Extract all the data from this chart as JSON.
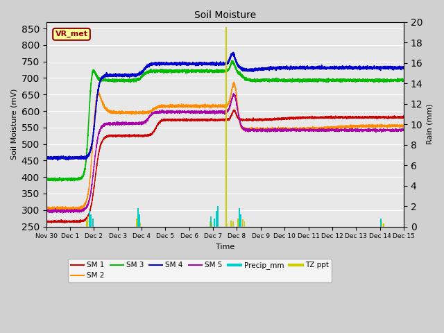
{
  "title": "Soil Moisture",
  "xlabel": "Time",
  "ylabel_left": "Soil Moisture (mV)",
  "ylabel_right": "Rain (mm)",
  "ylim_left": [
    250,
    870
  ],
  "ylim_right": [
    0,
    20
  ],
  "yticks_left": [
    250,
    300,
    350,
    400,
    450,
    500,
    550,
    600,
    650,
    700,
    750,
    800,
    850
  ],
  "yticks_right": [
    0,
    2,
    4,
    6,
    8,
    10,
    12,
    14,
    16,
    18,
    20
  ],
  "bg_color": "#e8e8e8",
  "grid_color": "#ffffff",
  "annotation_text": "VR_met",
  "annotation_color": "#8b0000",
  "annotation_bg": "#ffff99",
  "line_colors": {
    "SM1": "#cc0000",
    "SM2": "#ff8c00",
    "SM3": "#00bb00",
    "SM4": "#0000cc",
    "SM5": "#aa00aa",
    "Precip_mm": "#00cccc",
    "TZ_ppt": "#cccc00"
  },
  "x_tick_labels": [
    "Nov 30",
    "Dec 1",
    "Dec 2",
    "Dec 3",
    "Dec 4",
    "Dec 5",
    "Dec 6",
    "Dec 7",
    "Dec 8",
    "Dec 9",
    "Dec 10",
    "Dec 11",
    "Dec 12",
    "Dec 13",
    "Dec 14",
    "Dec 15"
  ],
  "x_tick_positions": [
    0,
    1,
    2,
    3,
    4,
    5,
    6,
    7,
    8,
    9,
    10,
    11,
    12,
    13,
    14,
    15
  ]
}
